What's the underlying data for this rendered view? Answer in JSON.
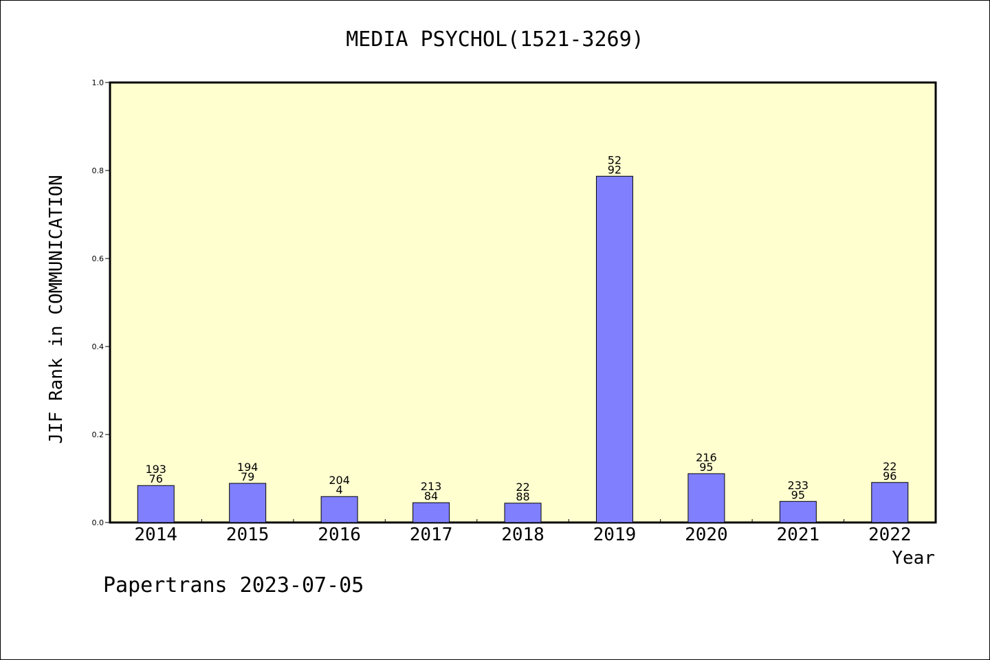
{
  "footer": {
    "text": "Papertrans 2023-07-05"
  },
  "chart_data": {
    "type": "bar",
    "title": "MEDIA PSYCHOL(1521-3269)",
    "xlabel": "Year",
    "ylabel": "JIF Rank in COMMUNICATION",
    "categories": [
      "2014",
      "2015",
      "2016",
      "2017",
      "2018",
      "2019",
      "2020",
      "2021",
      "2022"
    ],
    "values": [
      0.084,
      0.089,
      0.059,
      0.045,
      0.044,
      0.787,
      0.111,
      0.048,
      0.091
    ],
    "data_labels": [
      [
        "193",
        "76"
      ],
      [
        "194",
        "79"
      ],
      [
        "204",
        "4"
      ],
      [
        "213",
        "84"
      ],
      [
        "22",
        "88"
      ],
      [
        "52",
        "92"
      ],
      [
        "216",
        "95"
      ],
      [
        "233",
        "95"
      ],
      [
        "22",
        "96"
      ]
    ],
    "ylim": [
      0,
      1.0
    ],
    "yticks": [
      "0.0",
      "0.2",
      "0.4",
      "0.6",
      "0.8",
      "1.0"
    ],
    "grid": false,
    "colors": {
      "plot_background": "#ffffd0",
      "bar_fill": "#8080ff",
      "bar_stroke": "#000000"
    }
  }
}
